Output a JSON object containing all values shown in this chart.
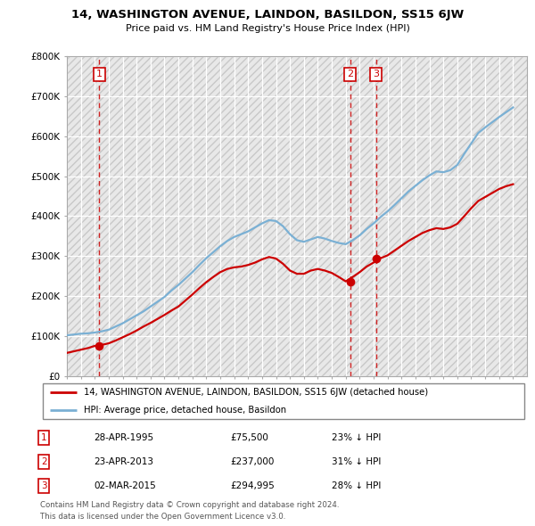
{
  "title": "14, WASHINGTON AVENUE, LAINDON, BASILDON, SS15 6JW",
  "subtitle": "Price paid vs. HM Land Registry's House Price Index (HPI)",
  "ylim": [
    0,
    800000
  ],
  "xlim_start": 1993,
  "xlim_end": 2026,
  "legend_entries": [
    "14, WASHINGTON AVENUE, LAINDON, BASILDON, SS15 6JW (detached house)",
    "HPI: Average price, detached house, Basildon"
  ],
  "transactions": [
    {
      "id": 1,
      "date": "28-APR-1995",
      "price": 75500,
      "pct": "23%",
      "year": 1995.32
    },
    {
      "id": 2,
      "date": "23-APR-2013",
      "price": 237000,
      "pct": "31%",
      "year": 2013.32
    },
    {
      "id": 3,
      "date": "02-MAR-2015",
      "price": 294995,
      "pct": "28%",
      "year": 2015.17
    }
  ],
  "footer_line1": "Contains HM Land Registry data © Crown copyright and database right 2024.",
  "footer_line2": "This data is licensed under the Open Government Licence v3.0.",
  "red_line_color": "#cc0000",
  "blue_line_color": "#7ab0d4",
  "vline_color": "#cc0000",
  "marker_color": "#cc0000",
  "hpi_x": [
    1993,
    1993.5,
    1994,
    1994.5,
    1995,
    1995.5,
    1996,
    1996.5,
    1997,
    1997.5,
    1998,
    1998.5,
    1999,
    1999.5,
    2000,
    2000.5,
    2001,
    2001.5,
    2002,
    2002.5,
    2003,
    2003.5,
    2004,
    2004.5,
    2005,
    2005.5,
    2006,
    2006.5,
    2007,
    2007.5,
    2008,
    2008.5,
    2009,
    2009.5,
    2010,
    2010.5,
    2011,
    2011.5,
    2012,
    2012.5,
    2013,
    2013.5,
    2014,
    2014.5,
    2015,
    2015.5,
    2016,
    2016.5,
    2017,
    2017.5,
    2018,
    2018.5,
    2019,
    2019.5,
    2020,
    2020.5,
    2021,
    2021.5,
    2022,
    2022.5,
    2023,
    2023.5,
    2024,
    2024.5,
    2025
  ],
  "hpi_y": [
    102000,
    104000,
    106000,
    107000,
    109000,
    112000,
    116000,
    124000,
    132000,
    142000,
    152000,
    162000,
    174000,
    186000,
    198000,
    214000,
    228000,
    244000,
    260000,
    278000,
    295000,
    310000,
    325000,
    338000,
    348000,
    355000,
    362000,
    372000,
    382000,
    390000,
    388000,
    375000,
    355000,
    340000,
    336000,
    342000,
    348000,
    344000,
    338000,
    333000,
    330000,
    340000,
    352000,
    368000,
    382000,
    398000,
    412000,
    428000,
    445000,
    462000,
    476000,
    490000,
    502000,
    512000,
    510000,
    515000,
    528000,
    556000,
    582000,
    608000,
    622000,
    635000,
    648000,
    660000,
    672000
  ],
  "price_x": [
    1993,
    1993.5,
    1994,
    1994.5,
    1995,
    1995.5,
    1996,
    1996.5,
    1997,
    1997.5,
    1998,
    1998.5,
    1999,
    1999.5,
    2000,
    2000.5,
    2001,
    2001.5,
    2002,
    2002.5,
    2003,
    2003.5,
    2004,
    2004.5,
    2005,
    2005.5,
    2006,
    2006.5,
    2007,
    2007.5,
    2008,
    2008.5,
    2009,
    2009.5,
    2010,
    2010.5,
    2011,
    2011.5,
    2012,
    2012.5,
    2013,
    2013.5,
    2014,
    2014.5,
    2015,
    2015.5,
    2016,
    2016.5,
    2017,
    2017.5,
    2018,
    2018.5,
    2019,
    2019.5,
    2020,
    2020.5,
    2021,
    2021.5,
    2022,
    2022.5,
    2023,
    2023.5,
    2024,
    2024.5,
    2025
  ],
  "price_y": [
    58000,
    62000,
    66000,
    70000,
    75500,
    78000,
    82000,
    89000,
    97000,
    105000,
    114000,
    124000,
    133000,
    143000,
    153000,
    164000,
    174000,
    189000,
    204000,
    220000,
    235000,
    248000,
    260000,
    268000,
    272000,
    274000,
    278000,
    284000,
    292000,
    298000,
    294000,
    281000,
    264000,
    256000,
    256000,
    264000,
    268000,
    264000,
    258000,
    248000,
    237000,
    248000,
    260000,
    274000,
    284000,
    294995,
    302000,
    314000,
    326000,
    338000,
    348000,
    358000,
    365000,
    370000,
    368000,
    372000,
    381000,
    400000,
    420000,
    438000,
    448000,
    458000,
    468000,
    475000,
    480000
  ]
}
